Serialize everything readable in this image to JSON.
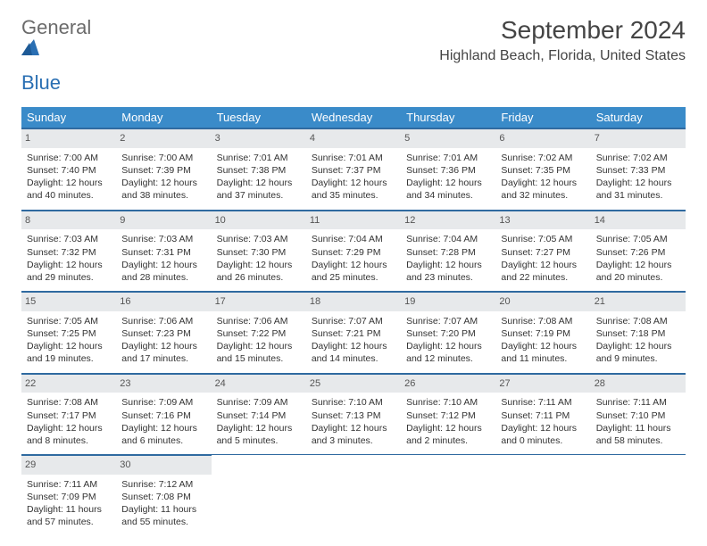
{
  "brand": {
    "part1": "General",
    "part2": "Blue"
  },
  "title": "September 2024",
  "location": "Highland Beach, Florida, United States",
  "colors": {
    "header_bg": "#3a8bc9",
    "header_text": "#ffffff",
    "daynum_bg": "#e7e9eb",
    "week_border": "#2f6aa0",
    "brand_gray": "#6b6b6b",
    "brand_blue": "#2a6fb3",
    "body_text": "#333333",
    "page_bg": "#ffffff"
  },
  "typography": {
    "month_title_fontsize": 28,
    "location_fontsize": 16,
    "dow_fontsize": 13,
    "daynum_fontsize": 11,
    "cell_fontsize": 10.5,
    "font_family": "Arial"
  },
  "layout": {
    "columns": 7,
    "rows": 5,
    "cell_width_pct": 14.28
  },
  "days_of_week": [
    "Sunday",
    "Monday",
    "Tuesday",
    "Wednesday",
    "Thursday",
    "Friday",
    "Saturday"
  ],
  "weeks": [
    [
      {
        "n": "1",
        "sunrise": "Sunrise: 7:00 AM",
        "sunset": "Sunset: 7:40 PM",
        "daylight": "Daylight: 12 hours and 40 minutes."
      },
      {
        "n": "2",
        "sunrise": "Sunrise: 7:00 AM",
        "sunset": "Sunset: 7:39 PM",
        "daylight": "Daylight: 12 hours and 38 minutes."
      },
      {
        "n": "3",
        "sunrise": "Sunrise: 7:01 AM",
        "sunset": "Sunset: 7:38 PM",
        "daylight": "Daylight: 12 hours and 37 minutes."
      },
      {
        "n": "4",
        "sunrise": "Sunrise: 7:01 AM",
        "sunset": "Sunset: 7:37 PM",
        "daylight": "Daylight: 12 hours and 35 minutes."
      },
      {
        "n": "5",
        "sunrise": "Sunrise: 7:01 AM",
        "sunset": "Sunset: 7:36 PM",
        "daylight": "Daylight: 12 hours and 34 minutes."
      },
      {
        "n": "6",
        "sunrise": "Sunrise: 7:02 AM",
        "sunset": "Sunset: 7:35 PM",
        "daylight": "Daylight: 12 hours and 32 minutes."
      },
      {
        "n": "7",
        "sunrise": "Sunrise: 7:02 AM",
        "sunset": "Sunset: 7:33 PM",
        "daylight": "Daylight: 12 hours and 31 minutes."
      }
    ],
    [
      {
        "n": "8",
        "sunrise": "Sunrise: 7:03 AM",
        "sunset": "Sunset: 7:32 PM",
        "daylight": "Daylight: 12 hours and 29 minutes."
      },
      {
        "n": "9",
        "sunrise": "Sunrise: 7:03 AM",
        "sunset": "Sunset: 7:31 PM",
        "daylight": "Daylight: 12 hours and 28 minutes."
      },
      {
        "n": "10",
        "sunrise": "Sunrise: 7:03 AM",
        "sunset": "Sunset: 7:30 PM",
        "daylight": "Daylight: 12 hours and 26 minutes."
      },
      {
        "n": "11",
        "sunrise": "Sunrise: 7:04 AM",
        "sunset": "Sunset: 7:29 PM",
        "daylight": "Daylight: 12 hours and 25 minutes."
      },
      {
        "n": "12",
        "sunrise": "Sunrise: 7:04 AM",
        "sunset": "Sunset: 7:28 PM",
        "daylight": "Daylight: 12 hours and 23 minutes."
      },
      {
        "n": "13",
        "sunrise": "Sunrise: 7:05 AM",
        "sunset": "Sunset: 7:27 PM",
        "daylight": "Daylight: 12 hours and 22 minutes."
      },
      {
        "n": "14",
        "sunrise": "Sunrise: 7:05 AM",
        "sunset": "Sunset: 7:26 PM",
        "daylight": "Daylight: 12 hours and 20 minutes."
      }
    ],
    [
      {
        "n": "15",
        "sunrise": "Sunrise: 7:05 AM",
        "sunset": "Sunset: 7:25 PM",
        "daylight": "Daylight: 12 hours and 19 minutes."
      },
      {
        "n": "16",
        "sunrise": "Sunrise: 7:06 AM",
        "sunset": "Sunset: 7:23 PM",
        "daylight": "Daylight: 12 hours and 17 minutes."
      },
      {
        "n": "17",
        "sunrise": "Sunrise: 7:06 AM",
        "sunset": "Sunset: 7:22 PM",
        "daylight": "Daylight: 12 hours and 15 minutes."
      },
      {
        "n": "18",
        "sunrise": "Sunrise: 7:07 AM",
        "sunset": "Sunset: 7:21 PM",
        "daylight": "Daylight: 12 hours and 14 minutes."
      },
      {
        "n": "19",
        "sunrise": "Sunrise: 7:07 AM",
        "sunset": "Sunset: 7:20 PM",
        "daylight": "Daylight: 12 hours and 12 minutes."
      },
      {
        "n": "20",
        "sunrise": "Sunrise: 7:08 AM",
        "sunset": "Sunset: 7:19 PM",
        "daylight": "Daylight: 12 hours and 11 minutes."
      },
      {
        "n": "21",
        "sunrise": "Sunrise: 7:08 AM",
        "sunset": "Sunset: 7:18 PM",
        "daylight": "Daylight: 12 hours and 9 minutes."
      }
    ],
    [
      {
        "n": "22",
        "sunrise": "Sunrise: 7:08 AM",
        "sunset": "Sunset: 7:17 PM",
        "daylight": "Daylight: 12 hours and 8 minutes."
      },
      {
        "n": "23",
        "sunrise": "Sunrise: 7:09 AM",
        "sunset": "Sunset: 7:16 PM",
        "daylight": "Daylight: 12 hours and 6 minutes."
      },
      {
        "n": "24",
        "sunrise": "Sunrise: 7:09 AM",
        "sunset": "Sunset: 7:14 PM",
        "daylight": "Daylight: 12 hours and 5 minutes."
      },
      {
        "n": "25",
        "sunrise": "Sunrise: 7:10 AM",
        "sunset": "Sunset: 7:13 PM",
        "daylight": "Daylight: 12 hours and 3 minutes."
      },
      {
        "n": "26",
        "sunrise": "Sunrise: 7:10 AM",
        "sunset": "Sunset: 7:12 PM",
        "daylight": "Daylight: 12 hours and 2 minutes."
      },
      {
        "n": "27",
        "sunrise": "Sunrise: 7:11 AM",
        "sunset": "Sunset: 7:11 PM",
        "daylight": "Daylight: 12 hours and 0 minutes."
      },
      {
        "n": "28",
        "sunrise": "Sunrise: 7:11 AM",
        "sunset": "Sunset: 7:10 PM",
        "daylight": "Daylight: 11 hours and 58 minutes."
      }
    ],
    [
      {
        "n": "29",
        "sunrise": "Sunrise: 7:11 AM",
        "sunset": "Sunset: 7:09 PM",
        "daylight": "Daylight: 11 hours and 57 minutes."
      },
      {
        "n": "30",
        "sunrise": "Sunrise: 7:12 AM",
        "sunset": "Sunset: 7:08 PM",
        "daylight": "Daylight: 11 hours and 55 minutes."
      },
      null,
      null,
      null,
      null,
      null
    ]
  ]
}
